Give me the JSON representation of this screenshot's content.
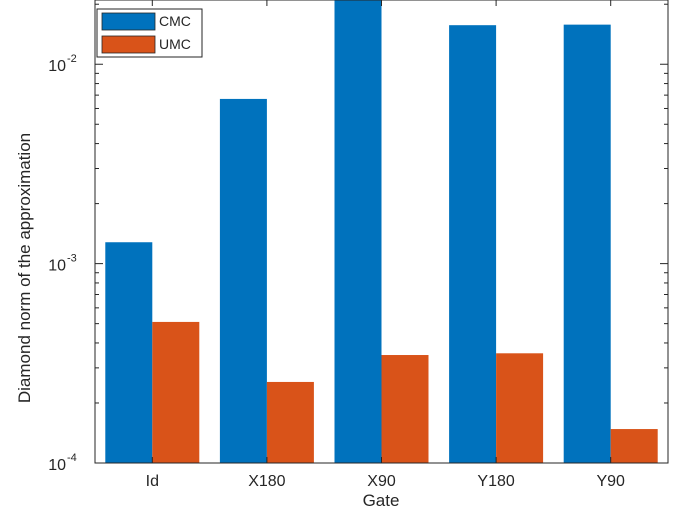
{
  "chart_data": {
    "type": "bar",
    "scale": "log",
    "categories": [
      "Id",
      "X180",
      "X90",
      "Y180",
      "Y90"
    ],
    "series": [
      {
        "name": "CMC",
        "color": "#0072BD",
        "values": [
          0.00128,
          0.0067,
          0.021,
          0.0157,
          0.0158
        ]
      },
      {
        "name": "UMC",
        "color": "#D95319",
        "values": [
          0.00051,
          0.000255,
          0.000348,
          0.000355,
          0.000148
        ]
      }
    ],
    "xlabel": "Gate",
    "ylabel": "Diamond norm of the approximation",
    "ylim": [
      0.0001,
      0.021
    ],
    "yticks": [
      {
        "base": "10",
        "exp": "-4"
      },
      {
        "base": "10",
        "exp": "-3"
      },
      {
        "base": "10",
        "exp": "-2"
      }
    ],
    "legend_position": "top-left",
    "grid": false
  }
}
